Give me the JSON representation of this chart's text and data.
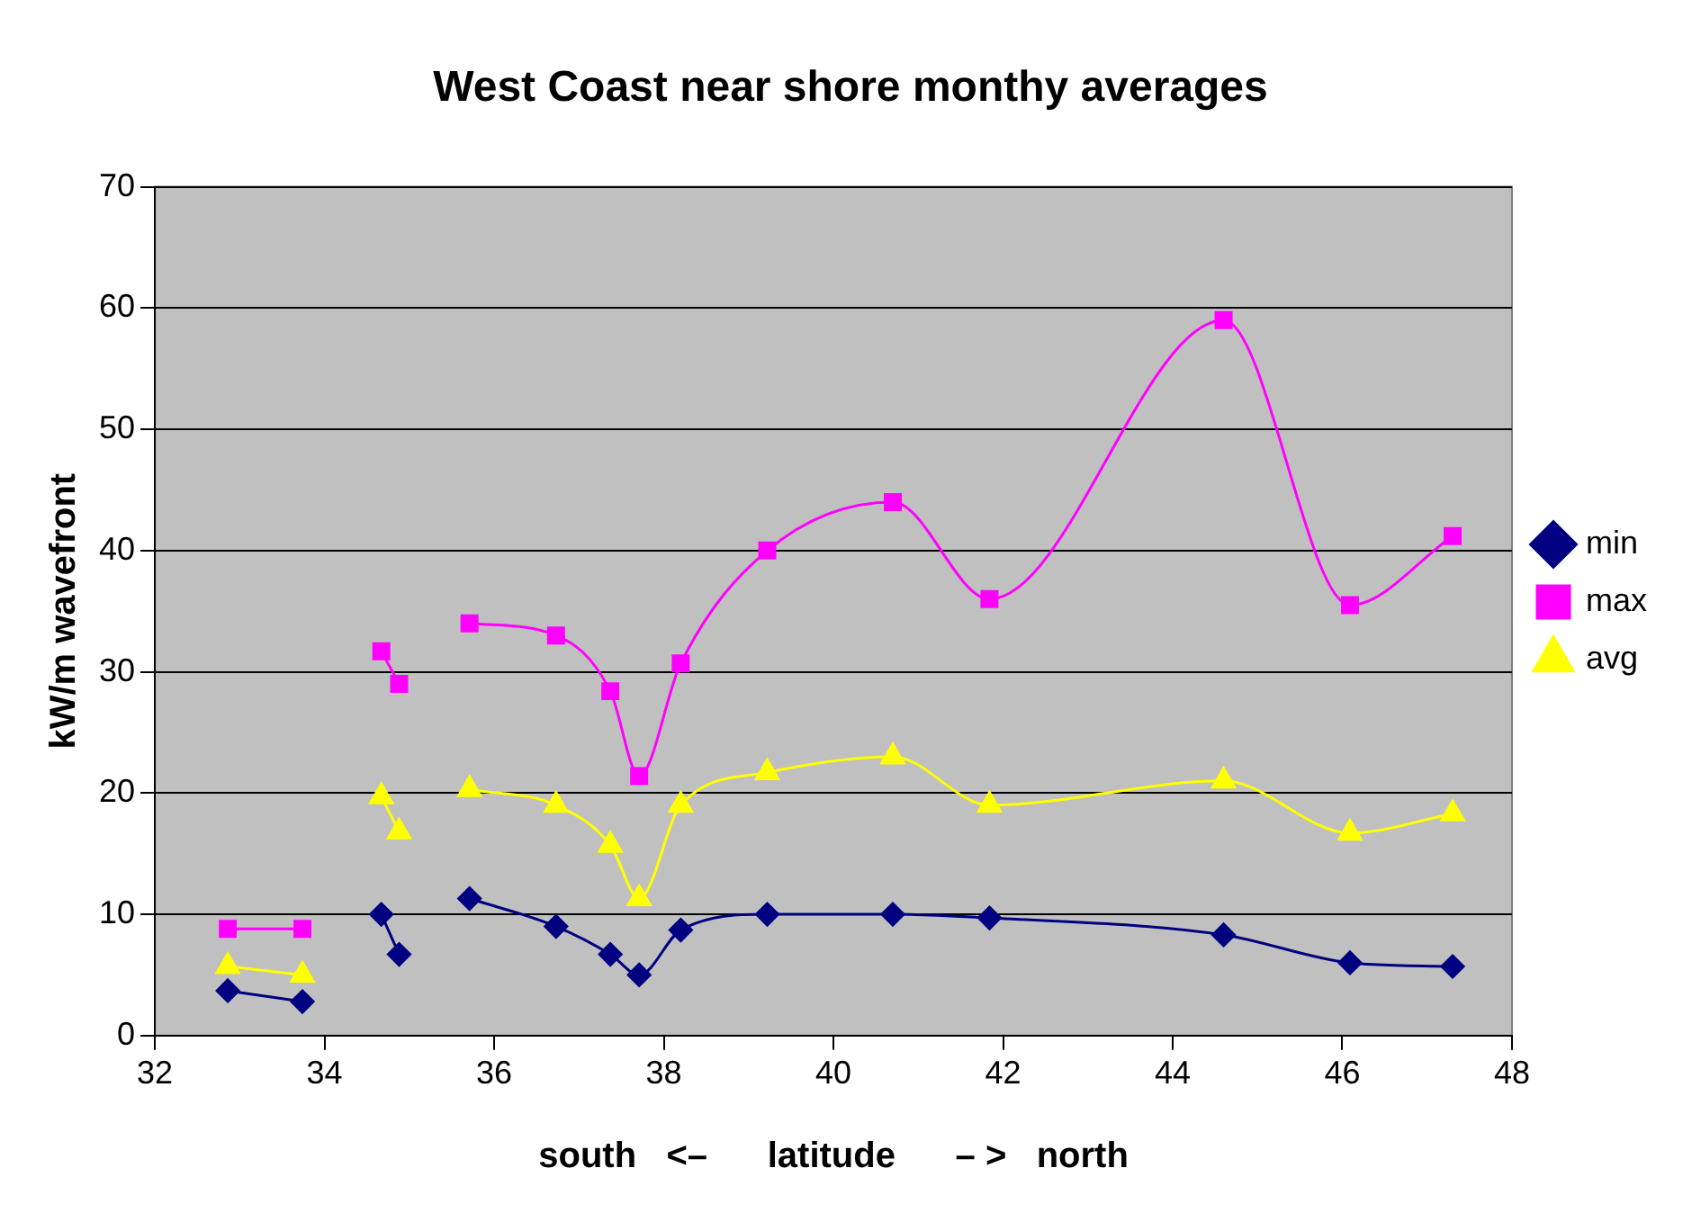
{
  "chart_data": {
    "type": "line",
    "title": "West Coast near shore monthy averages",
    "xlabel": "south   <–      latitude      – >   north",
    "ylabel": "kW/m wavefront",
    "x": [
      32.86,
      33.74,
      34.2,
      34.67,
      34.88,
      35.3,
      35.71,
      36.73,
      37.37,
      37.71,
      38.2,
      39.22,
      40.7,
      41.84,
      44.6,
      46.09,
      47.3
    ],
    "series": [
      {
        "name": "min",
        "color": "#000080",
        "marker": "diamond",
        "values": [
          3.7,
          2.8,
          null,
          10,
          6.7,
          null,
          11.3,
          9,
          6.7,
          5,
          8.7,
          10,
          10,
          9.7,
          8.3,
          6,
          5.7
        ]
      },
      {
        "name": "max",
        "color": "#ff00ff",
        "marker": "square",
        "values": [
          8.8,
          8.8,
          null,
          31.7,
          29,
          null,
          34,
          33,
          28.4,
          21.4,
          30.7,
          40,
          44,
          36,
          59,
          35.5,
          41.2
        ]
      },
      {
        "name": "avg",
        "color": "#ffff00",
        "marker": "triangle",
        "values": [
          5.7,
          5,
          null,
          19.7,
          16.8,
          null,
          20.3,
          19,
          15.7,
          11.3,
          19,
          21.7,
          23,
          19,
          21,
          16.7,
          18.3
        ]
      }
    ],
    "xlim": [
      32,
      48
    ],
    "xticks": [
      32,
      34,
      36,
      38,
      40,
      42,
      44,
      46,
      48
    ],
    "ylim": [
      0,
      70
    ],
    "yticks": [
      0,
      10,
      20,
      30,
      40,
      50,
      60,
      70
    ],
    "grid": "y",
    "legend": "right"
  }
}
